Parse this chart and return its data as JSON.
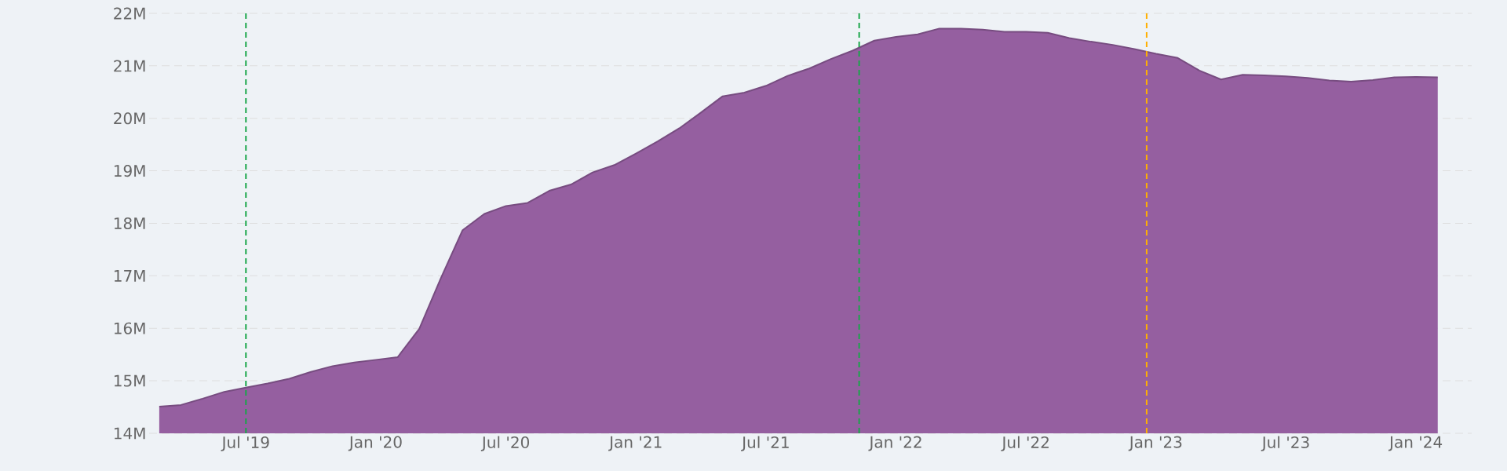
{
  "chart_data": {
    "type": "area",
    "x": [
      "2019-03",
      "2019-04",
      "2019-05",
      "2019-06",
      "2019-07",
      "2019-08",
      "2019-09",
      "2019-10",
      "2019-11",
      "2019-12",
      "2020-01",
      "2020-02",
      "2020-03",
      "2020-04",
      "2020-05",
      "2020-06",
      "2020-07",
      "2020-08",
      "2020-09",
      "2020-10",
      "2020-11",
      "2020-12",
      "2021-01",
      "2021-02",
      "2021-03",
      "2021-04",
      "2021-05",
      "2021-06",
      "2021-07",
      "2021-08",
      "2021-09",
      "2021-10",
      "2021-11",
      "2021-12",
      "2022-01",
      "2022-02",
      "2022-03",
      "2022-04",
      "2022-05",
      "2022-06",
      "2022-07",
      "2022-08",
      "2022-09",
      "2022-10",
      "2022-11",
      "2022-12",
      "2023-01",
      "2023-02",
      "2023-03",
      "2023-04",
      "2023-05",
      "2023-06",
      "2023-07",
      "2023-08",
      "2023-09",
      "2023-10",
      "2023-11",
      "2023-12",
      "2024-01",
      "2024-02"
    ],
    "series": [
      {
        "color": "#955fa0",
        "values": [
          14510000,
          14540000,
          14660000,
          14790000,
          14870000,
          14950000,
          15040000,
          15170000,
          15280000,
          15350000,
          15400000,
          15450000,
          15990000,
          16960000,
          17870000,
          18180000,
          18330000,
          18390000,
          18620000,
          18740000,
          18970000,
          19110000,
          19330000,
          19560000,
          19810000,
          20110000,
          20420000,
          20490000,
          20620000,
          20810000,
          20950000,
          21130000,
          21290000,
          21480000,
          21550000,
          21600000,
          21710000,
          21710000,
          21690000,
          21650000,
          21650000,
          21630000,
          21530000,
          21460000,
          21400000,
          21320000,
          21230000,
          21150000,
          20910000,
          20740000,
          20830000,
          20820000,
          20800000,
          20770000,
          20720000,
          20700000,
          20730000,
          20780000,
          20790000,
          20780000
        ]
      }
    ],
    "xlim": [
      "2019-02-17",
      "2024-03-18"
    ],
    "xticks": [
      {
        "value": "2019-07",
        "label": "Jul '19"
      },
      {
        "value": "2020-01",
        "label": "Jan '20"
      },
      {
        "value": "2020-07",
        "label": "Jul '20"
      },
      {
        "value": "2021-01",
        "label": "Jan '21"
      },
      {
        "value": "2021-07",
        "label": "Jul '21"
      },
      {
        "value": "2022-01",
        "label": "Jan '22"
      },
      {
        "value": "2022-07",
        "label": "Jul '22"
      },
      {
        "value": "2023-01",
        "label": "Jan '23"
      },
      {
        "value": "2023-07",
        "label": "Jul '23"
      },
      {
        "value": "2024-01",
        "label": "Jan '24"
      }
    ],
    "ylim": [
      14000000,
      22000000
    ],
    "yticks": [
      {
        "value": 14000000,
        "label": "14M"
      },
      {
        "value": 15000000,
        "label": "15M"
      },
      {
        "value": 16000000,
        "label": "16M"
      },
      {
        "value": 17000000,
        "label": "17M"
      },
      {
        "value": 18000000,
        "label": "18M"
      },
      {
        "value": 19000000,
        "label": "19M"
      },
      {
        "value": 20000000,
        "label": "20M"
      },
      {
        "value": 21000000,
        "label": "21M"
      },
      {
        "value": 22000000,
        "label": "22M"
      }
    ],
    "grid": "y",
    "ref_lines": [
      {
        "axis": "x",
        "value": "2019-07",
        "color": "#1aa64a",
        "line_style": "dashed"
      },
      {
        "axis": "x",
        "value": "2021-11-10",
        "color": "#1aa64a",
        "line_style": "dashed"
      },
      {
        "axis": "x",
        "value": "2022-12-18",
        "color": "#ffb000",
        "line_style": "dashed"
      }
    ]
  }
}
